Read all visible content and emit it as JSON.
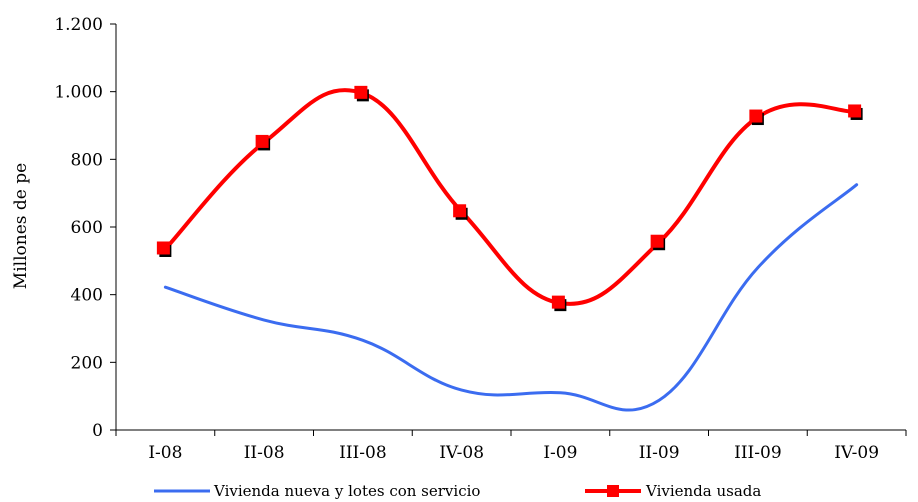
{
  "chart_data": {
    "type": "line",
    "categories": [
      "I-08",
      "II-08",
      "III-08",
      "IV-08",
      "I-09",
      "II-09",
      "III-09",
      "IV-09"
    ],
    "ylabel": "Millones de pesos",
    "ylabel_visible": "Millones de pe",
    "ylim": [
      0,
      1200
    ],
    "yticks": [
      0,
      200,
      400,
      600,
      800,
      1000,
      1200
    ],
    "ytick_labels": [
      "0",
      "200",
      "400",
      "600",
      "800",
      "1.000",
      "1.200"
    ],
    "grid": false,
    "legend_position": "bottom",
    "series": [
      {
        "name": "Vivienda nueva y lotes con servicio",
        "color": "#3b6cf0",
        "marker": "none",
        "values": [
          422,
          325,
          265,
          118,
          110,
          88,
          480,
          725
        ]
      },
      {
        "name": "Vivienda usada",
        "color": "#ff0000",
        "marker": "square",
        "values": [
          535,
          850,
          995,
          645,
          375,
          555,
          925,
          940
        ]
      }
    ]
  }
}
